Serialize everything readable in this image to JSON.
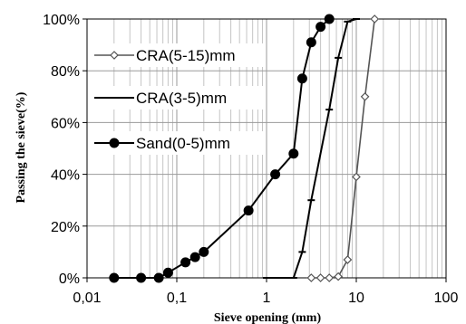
{
  "chart_data": {
    "type": "line",
    "xscale": "log",
    "xlim": [
      0.01,
      100
    ],
    "ylim": [
      0,
      100
    ],
    "xlabel": "Sieve opening (mm)",
    "ylabel": "Passing the sieve(%)",
    "x_ticks": [
      "0,01",
      "0,1",
      "1",
      "10",
      "100"
    ],
    "y_ticks": [
      "0%",
      "20%",
      "40%",
      "60%",
      "80%",
      "100%"
    ],
    "grid": true,
    "legend_placement": "top-left",
    "series": [
      {
        "name": "CRA(5-15)mm",
        "marker": "diamond-open",
        "color": "#555555",
        "points": [
          {
            "x": 3.15,
            "y": 0
          },
          {
            "x": 4.0,
            "y": 0
          },
          {
            "x": 5.0,
            "y": 0
          },
          {
            "x": 6.3,
            "y": 0.5
          },
          {
            "x": 8.0,
            "y": 7
          },
          {
            "x": 10.0,
            "y": 39
          },
          {
            "x": 12.5,
            "y": 70
          },
          {
            "x": 16.0,
            "y": 100
          }
        ]
      },
      {
        "name": "CRA(3-5)mm",
        "marker": "dash",
        "color": "#000000",
        "points": [
          {
            "x": 1.0,
            "y": 0
          },
          {
            "x": 2.0,
            "y": 0
          },
          {
            "x": 2.5,
            "y": 10
          },
          {
            "x": 3.15,
            "y": 30
          },
          {
            "x": 5.0,
            "y": 65
          },
          {
            "x": 6.3,
            "y": 85
          },
          {
            "x": 8.0,
            "y": 99
          },
          {
            "x": 10.0,
            "y": 100
          }
        ]
      },
      {
        "name": "Sand(0-5)mm",
        "marker": "circle-filled",
        "color": "#000000",
        "points": [
          {
            "x": 0.02,
            "y": 0
          },
          {
            "x": 0.04,
            "y": 0
          },
          {
            "x": 0.063,
            "y": 0
          },
          {
            "x": 0.08,
            "y": 2
          },
          {
            "x": 0.125,
            "y": 6
          },
          {
            "x": 0.16,
            "y": 8
          },
          {
            "x": 0.2,
            "y": 10
          },
          {
            "x": 0.63,
            "y": 26
          },
          {
            "x": 1.25,
            "y": 40
          },
          {
            "x": 2.0,
            "y": 48
          },
          {
            "x": 2.5,
            "y": 77
          },
          {
            "x": 3.15,
            "y": 91
          },
          {
            "x": 4.0,
            "y": 97
          },
          {
            "x": 5.0,
            "y": 100
          }
        ]
      }
    ]
  }
}
